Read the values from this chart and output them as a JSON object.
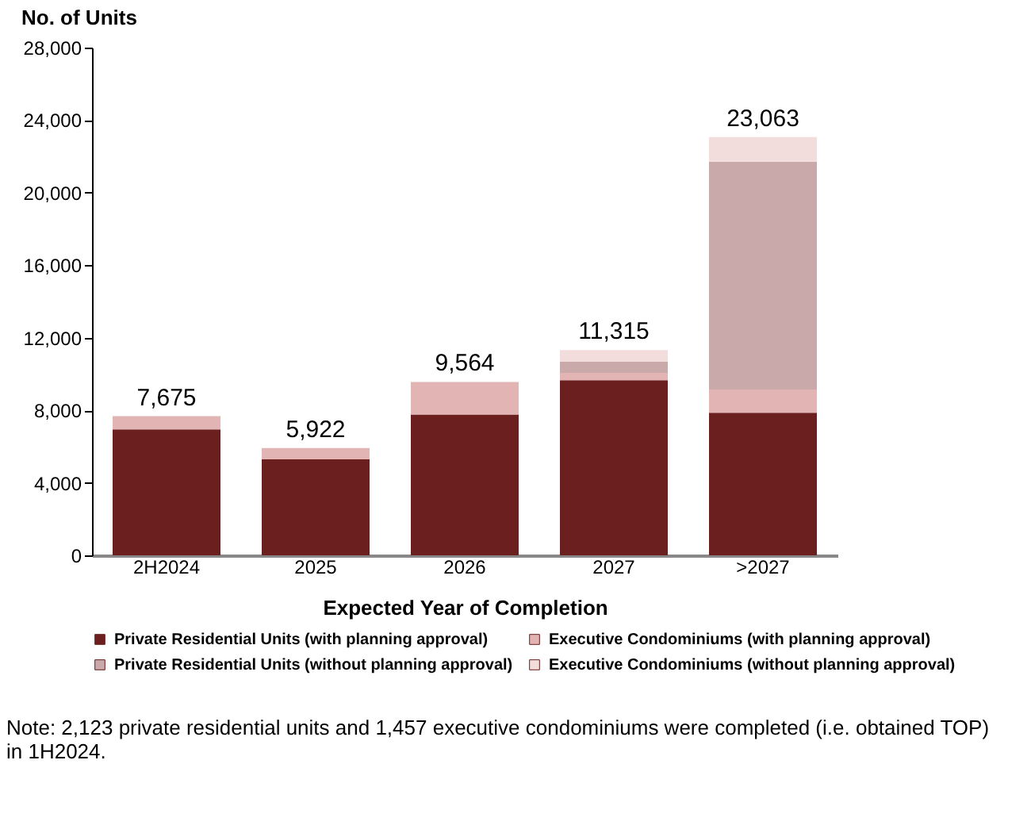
{
  "chart_data": {
    "type": "bar",
    "stacked": true,
    "ylabel": "No. of Units",
    "xlabel": "Expected Year of Completion",
    "categories": [
      "2H2024",
      "2025",
      "2026",
      "2027",
      ">2027"
    ],
    "series": [
      {
        "name": "Private Residential Units (with planning approval)",
        "color": "#6b1f1f",
        "values": [
          6940,
          5290,
          7765,
          9660,
          7860
        ]
      },
      {
        "name": "Executive Condominiums (with planning approval)",
        "color": "#e2b4b4",
        "values": [
          735,
          632,
          1799,
          400,
          1280
        ]
      },
      {
        "name": "Private Residential Units (without planning approval)",
        "color": "#c9a9a9",
        "values": [
          null,
          null,
          null,
          610,
          12570
        ]
      },
      {
        "name": "Executive Condominiums (without planning approval)",
        "color": "#f3dcdc",
        "values": [
          null,
          null,
          null,
          645,
          1353
        ]
      }
    ],
    "totals": [
      "7,675",
      "5,922",
      "9,564",
      "11,315",
      "23,063"
    ],
    "ylim": [
      0,
      28000
    ],
    "yticks": [
      0,
      {
        "value": 4000,
        "label": "4,000"
      },
      {
        "value": 8000,
        "label": "8,000"
      },
      {
        "value": 12000,
        "label": "12,000"
      },
      {
        "value": 16000,
        "label": "16,000"
      },
      {
        "value": 20000,
        "label": "20,000"
      },
      {
        "value": 24000,
        "label": "24,000"
      },
      {
        "value": 28000,
        "label": "28,000"
      }
    ],
    "grid": false,
    "legend": "bottom",
    "annotations": [
      "Note: 2,123 private residential units and 1,457 executive condominiums were completed (i.e. obtained TOP) in 1H2024."
    ]
  }
}
